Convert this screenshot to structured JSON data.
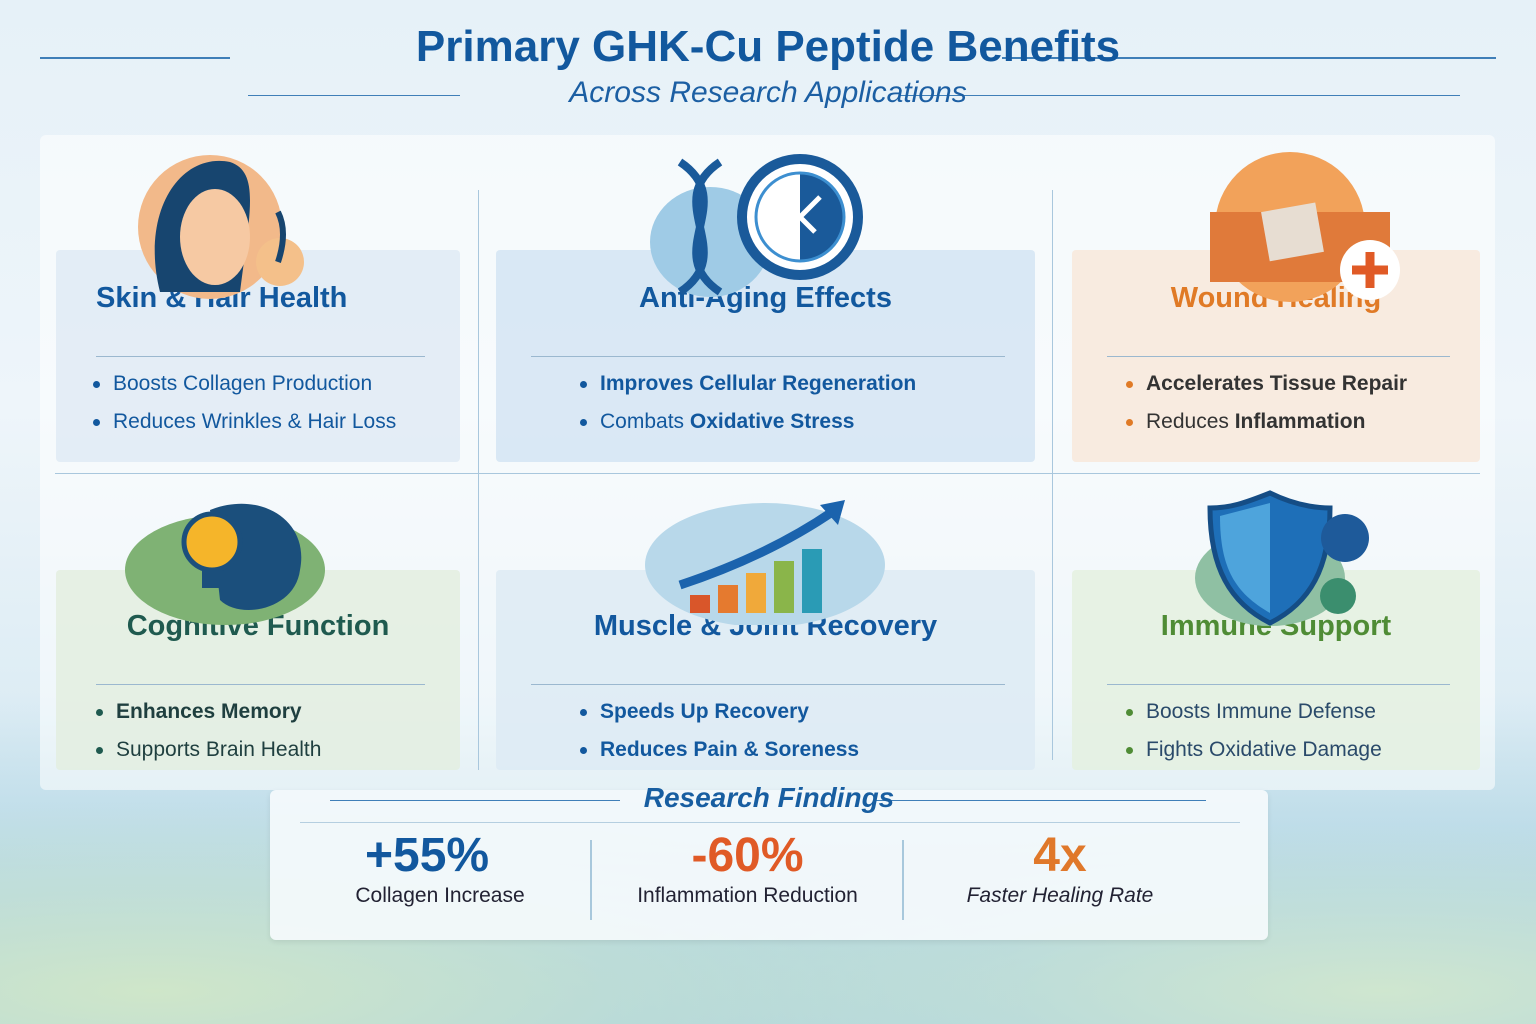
{
  "title": "Primary GHK-Cu Peptide Benefits",
  "subtitle": "Across Research Applications",
  "cards": [
    {
      "title": "Skin & Hair Health",
      "icon": "woman-face-hair-icon",
      "color": "#12589e",
      "items": [
        {
          "text": "Boosts Collagen Production"
        },
        {
          "text": "Reduces Wrinkles & Hair Loss"
        }
      ]
    },
    {
      "title": "Anti-Aging Effects",
      "icon": "dna-clock-icon",
      "color": "#12589e",
      "items": [
        {
          "text": "Improves Cellular Regeneration",
          "bold": true
        },
        {
          "pre": "Combats ",
          "boldpart": "Oxidative Stress"
        }
      ]
    },
    {
      "title": "Wound Healing",
      "icon": "bandaged-skin-icon",
      "color": "#e07a26",
      "items": [
        {
          "text": "Accelerates Tissue Repair",
          "bold": true
        },
        {
          "pre": "Reduces ",
          "boldpart": "Inflammation"
        }
      ]
    },
    {
      "title": "Cognitive Function",
      "icon": "brain-lightbulb-icon",
      "color": "#1f5a4f",
      "items": [
        {
          "text": "Enhances Memory",
          "bold": true
        },
        {
          "text": "Supports Brain Health"
        }
      ]
    },
    {
      "title": "Muscle & Joint Recovery",
      "icon": "bar-chart-arrow-icon",
      "color": "#12589e",
      "items": [
        {
          "text": "Speeds Up Recovery",
          "bold": true
        },
        {
          "text": "Reduces Pain & Soreness",
          "bold": true
        }
      ]
    },
    {
      "title": "Immune Support",
      "icon": "shield-virus-icon",
      "color": "#4f8c35",
      "items": [
        {
          "text": "Boosts Immune Defense"
        },
        {
          "text": "Fights Oxidative Damage"
        }
      ]
    }
  ],
  "findings": {
    "title": "Research Findings",
    "stats": [
      {
        "value": "+55%",
        "label": "Collagen Increase",
        "color": "#12589e"
      },
      {
        "value": "-60%",
        "label": "Inflammation Reduction",
        "color": "#e05a26"
      },
      {
        "value": "4x",
        "label": "Faster Healing Rate",
        "color": "#e0782a"
      }
    ]
  }
}
